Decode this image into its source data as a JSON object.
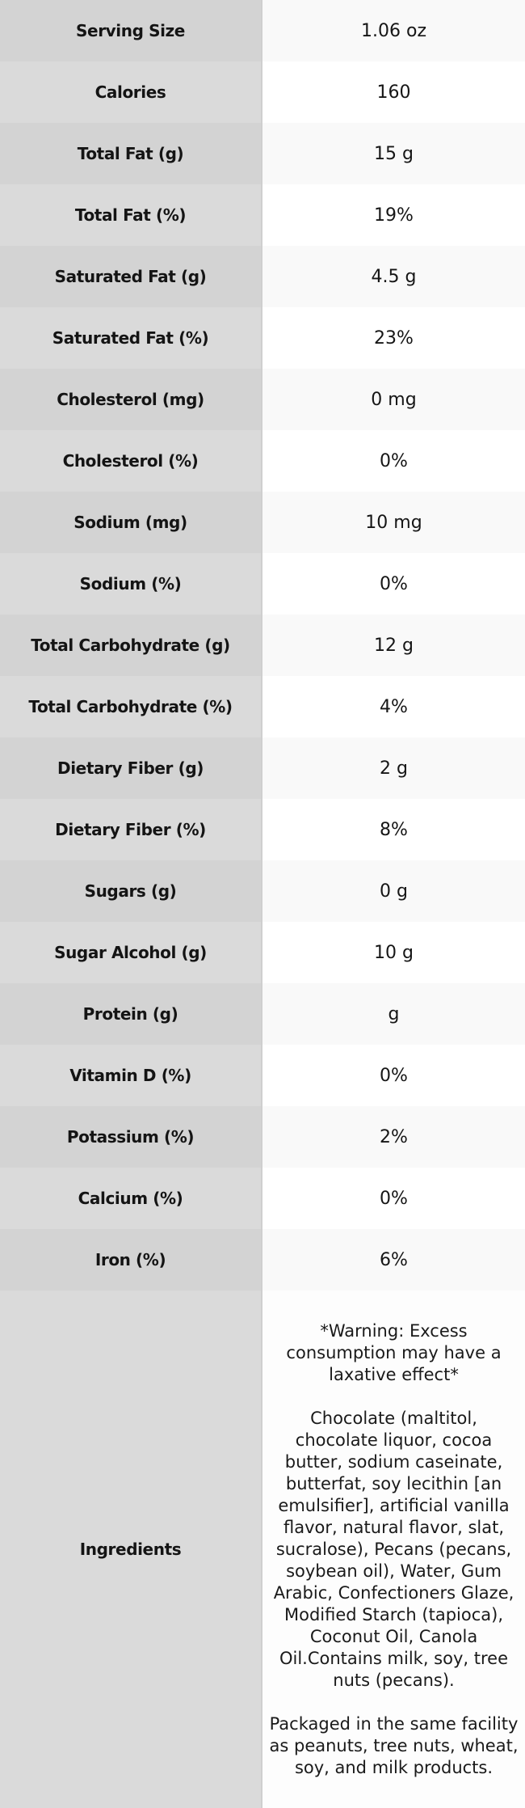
{
  "chart_data": {
    "type": "table",
    "title": "Nutrition information table",
    "rows": [
      {
        "label": "Serving Size",
        "value": "1.06 oz"
      },
      {
        "label": "Calories",
        "value": "160"
      },
      {
        "label": "Total Fat (g)",
        "value": "15 g"
      },
      {
        "label": "Total Fat (%)",
        "value": "19%"
      },
      {
        "label": "Saturated Fat (g)",
        "value": "4.5 g"
      },
      {
        "label": "Saturated Fat (%)",
        "value": "23%"
      },
      {
        "label": "Cholesterol (mg)",
        "value": "0 mg"
      },
      {
        "label": "Cholesterol (%)",
        "value": "0%"
      },
      {
        "label": "Sodium (mg)",
        "value": "10 mg"
      },
      {
        "label": "Sodium (%)",
        "value": "0%"
      },
      {
        "label": "Total Carbohydrate (g)",
        "value": "12 g"
      },
      {
        "label": "Total Carbohydrate (%)",
        "value": "4%"
      },
      {
        "label": "Dietary Fiber (g)",
        "value": "2 g"
      },
      {
        "label": "Dietary Fiber (%)",
        "value": "8%"
      },
      {
        "label": "Sugars (g)",
        "value": "0 g"
      },
      {
        "label": "Sugar Alcohol (g)",
        "value": "10 g"
      },
      {
        "label": "Protein (g)",
        "value": "g"
      },
      {
        "label": "Vitamin D (%)",
        "value": "0%"
      },
      {
        "label": "Potassium (%)",
        "value": "2%"
      },
      {
        "label": "Calcium (%)",
        "value": "0%"
      },
      {
        "label": "Iron (%)",
        "value": "6%"
      },
      {
        "label": "Ingredients",
        "paragraphs": [
          "*Warning: Excess consumption may have a laxative effect*",
          "Chocolate (maltitol, chocolate liquor, cocoa butter, sodium caseinate, butterfat, soy lecithin [an emulsifier], artificial vanilla flavor, natural flavor, slat, sucralose), Pecans (pecans, soybean oil), Water, Gum Arabic, Confectioners Glaze, Modified Starch (tapioca), Coconut Oil, Canola Oil.Contains milk, soy, tree nuts (pecans).",
          "Packaged in the same facility as peanuts, tree nuts, wheat, soy, and milk products."
        ]
      }
    ]
  },
  "colors": {
    "label_col_odd": "#d3d3d3",
    "label_col_even": "#dadada",
    "value_col_odd": "#f9f9f9",
    "value_col_even": "#ffffff",
    "value_col_ingredients": "#fdfdfd",
    "divider": "#cfcfcf"
  }
}
